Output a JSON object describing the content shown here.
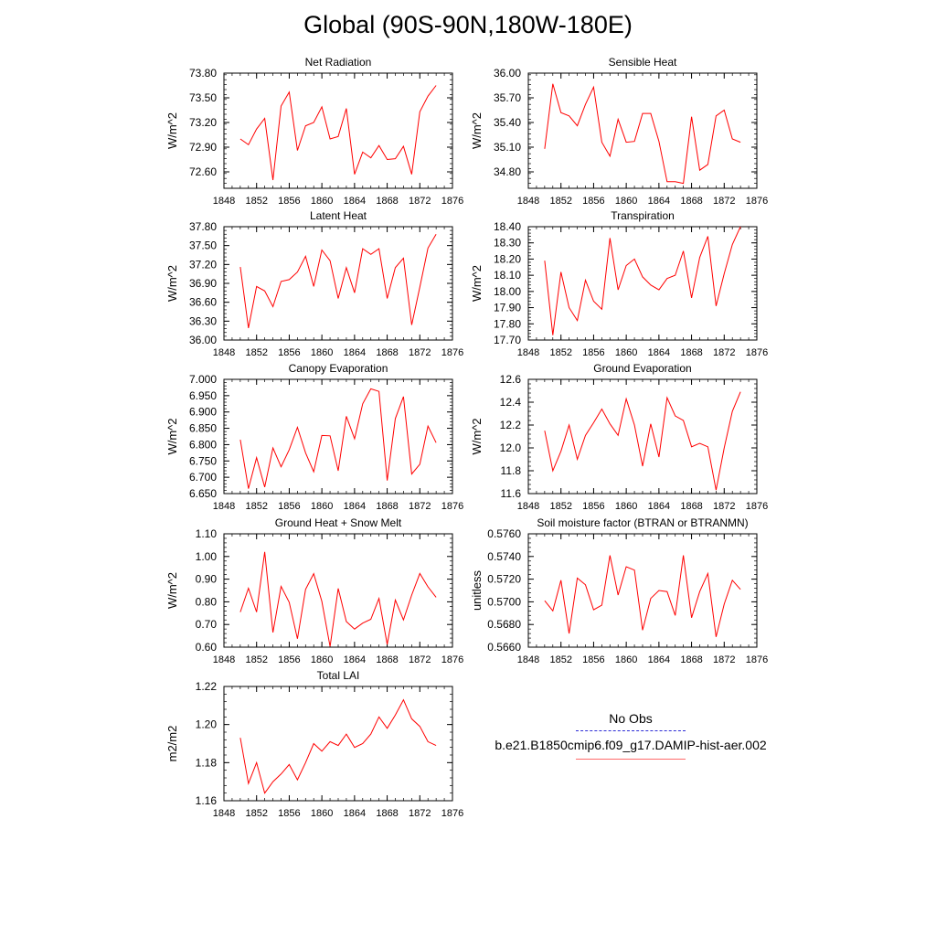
{
  "page": {
    "title": "Global (90S-90N,180W-180E)"
  },
  "legend": {
    "obs_label": "No Obs",
    "case_label": "b.e21.B1850cmip6.f09_g17.DAMIP-hist-aer.002",
    "obs_color": "#2b2bd6",
    "case_color": "#ff0000"
  },
  "chart_data": [
    {
      "type": "line",
      "title": "Net Radiation",
      "ylabel": "W/m^2",
      "xlim": [
        1848,
        1876
      ],
      "ylim": [
        72.4,
        73.8
      ],
      "x_ticks": [
        "1848",
        "1852",
        "1856",
        "1860",
        "1864",
        "1868",
        "1872",
        "1876"
      ],
      "y_ticks": [
        "72.60",
        "72.90",
        "73.20",
        "73.50",
        "73.80"
      ],
      "x": [
        1850,
        1851,
        1852,
        1853,
        1854,
        1855,
        1856,
        1857,
        1858,
        1859,
        1860,
        1861,
        1862,
        1863,
        1864,
        1865,
        1866,
        1867,
        1868,
        1869,
        1870,
        1871,
        1872,
        1873,
        1874
      ],
      "series": [
        {
          "values": [
            73.0,
            72.93,
            73.12,
            73.25,
            72.5,
            73.4,
            73.57,
            72.86,
            73.16,
            73.2,
            73.39,
            73.0,
            73.03,
            73.37,
            72.57,
            72.84,
            72.77,
            72.92,
            72.75,
            72.76,
            72.91,
            72.57,
            73.33,
            73.52,
            73.65
          ]
        }
      ]
    },
    {
      "type": "line",
      "title": "Sensible Heat",
      "ylabel": "W/m^2",
      "xlim": [
        1848,
        1876
      ],
      "ylim": [
        34.6,
        36.0
      ],
      "x_ticks": [
        "1848",
        "1852",
        "1856",
        "1860",
        "1864",
        "1868",
        "1872",
        "1876"
      ],
      "y_ticks": [
        "34.80",
        "35.10",
        "35.40",
        "35.70",
        "36.00"
      ],
      "x": [
        1850,
        1851,
        1852,
        1853,
        1854,
        1855,
        1856,
        1857,
        1858,
        1859,
        1860,
        1861,
        1862,
        1863,
        1864,
        1865,
        1866,
        1867,
        1868,
        1869,
        1870,
        1871,
        1872,
        1873,
        1874
      ],
      "series": [
        {
          "values": [
            35.08,
            35.87,
            35.52,
            35.48,
            35.36,
            35.62,
            35.83,
            35.16,
            34.99,
            35.44,
            35.16,
            35.17,
            35.51,
            35.51,
            35.17,
            34.68,
            34.68,
            34.66,
            35.47,
            34.82,
            34.89,
            35.48,
            35.55,
            35.2,
            35.16
          ]
        }
      ]
    },
    {
      "type": "line",
      "title": "Latent Heat",
      "ylabel": "W/m^2",
      "xlim": [
        1848,
        1876
      ],
      "ylim": [
        36.0,
        37.8
      ],
      "x_ticks": [
        "1848",
        "1852",
        "1856",
        "1860",
        "1864",
        "1868",
        "1872",
        "1876"
      ],
      "y_ticks": [
        "36.00",
        "36.30",
        "36.60",
        "36.90",
        "37.20",
        "37.50",
        "37.80"
      ],
      "x": [
        1850,
        1851,
        1852,
        1853,
        1854,
        1855,
        1856,
        1857,
        1858,
        1859,
        1860,
        1861,
        1862,
        1863,
        1864,
        1865,
        1866,
        1867,
        1868,
        1869,
        1870,
        1871,
        1872,
        1873,
        1874
      ],
      "series": [
        {
          "values": [
            37.16,
            36.19,
            36.85,
            36.78,
            36.53,
            36.93,
            36.96,
            37.08,
            37.33,
            36.85,
            37.43,
            37.26,
            36.66,
            37.15,
            36.75,
            37.45,
            37.36,
            37.45,
            36.66,
            37.15,
            37.3,
            36.24,
            36.84,
            37.46,
            37.68
          ]
        }
      ]
    },
    {
      "type": "line",
      "title": "Transpiration",
      "ylabel": "W/m^2",
      "xlim": [
        1848,
        1876
      ],
      "ylim": [
        17.7,
        18.4
      ],
      "x_ticks": [
        "1848",
        "1852",
        "1856",
        "1860",
        "1864",
        "1868",
        "1872",
        "1876"
      ],
      "y_ticks": [
        "17.70",
        "17.80",
        "17.90",
        "18.00",
        "18.10",
        "18.20",
        "18.30",
        "18.40"
      ],
      "x": [
        1850,
        1851,
        1852,
        1853,
        1854,
        1855,
        1856,
        1857,
        1858,
        1859,
        1860,
        1861,
        1862,
        1863,
        1864,
        1865,
        1866,
        1867,
        1868,
        1869,
        1870,
        1871,
        1872,
        1873,
        1874
      ],
      "series": [
        {
          "values": [
            18.19,
            17.73,
            18.12,
            17.9,
            17.82,
            18.07,
            17.94,
            17.89,
            18.33,
            18.01,
            18.16,
            18.2,
            18.09,
            18.04,
            18.01,
            18.08,
            18.1,
            18.25,
            17.96,
            18.21,
            18.34,
            17.91,
            18.11,
            18.29,
            18.4
          ]
        }
      ]
    },
    {
      "type": "line",
      "title": "Canopy Evaporation",
      "ylabel": "W/m^2",
      "xlim": [
        1848,
        1876
      ],
      "ylim": [
        6.65,
        7.0
      ],
      "x_ticks": [
        "1848",
        "1852",
        "1856",
        "1860",
        "1864",
        "1868",
        "1872",
        "1876"
      ],
      "y_ticks": [
        "6.650",
        "6.700",
        "6.750",
        "6.800",
        "6.850",
        "6.900",
        "6.950",
        "7.000"
      ],
      "x": [
        1850,
        1851,
        1852,
        1853,
        1854,
        1855,
        1856,
        1857,
        1858,
        1859,
        1860,
        1861,
        1862,
        1863,
        1864,
        1865,
        1866,
        1867,
        1868,
        1869,
        1870,
        1871,
        1872,
        1873,
        1874
      ],
      "series": [
        {
          "values": [
            6.815,
            6.665,
            6.76,
            6.67,
            6.79,
            6.732,
            6.784,
            6.853,
            6.775,
            6.717,
            6.828,
            6.827,
            6.72,
            6.887,
            6.818,
            6.925,
            6.971,
            6.963,
            6.69,
            6.88,
            6.947,
            6.71,
            6.74,
            6.857,
            6.806
          ]
        }
      ]
    },
    {
      "type": "line",
      "title": "Ground Evaporation",
      "ylabel": "W/m^2",
      "xlim": [
        1848,
        1876
      ],
      "ylim": [
        11.6,
        12.6
      ],
      "x_ticks": [
        "1848",
        "1852",
        "1856",
        "1860",
        "1864",
        "1868",
        "1872",
        "1876"
      ],
      "y_ticks": [
        "11.6",
        "11.8",
        "12.0",
        "12.2",
        "12.4",
        "12.6"
      ],
      "x": [
        1850,
        1851,
        1852,
        1853,
        1854,
        1855,
        1856,
        1857,
        1858,
        1859,
        1860,
        1861,
        1862,
        1863,
        1864,
        1865,
        1866,
        1867,
        1868,
        1869,
        1870,
        1871,
        1872,
        1873,
        1874
      ],
      "series": [
        {
          "values": [
            12.15,
            11.8,
            11.97,
            12.2,
            11.9,
            12.11,
            12.22,
            12.34,
            12.21,
            12.11,
            12.43,
            12.2,
            11.84,
            12.21,
            11.92,
            12.44,
            12.28,
            12.24,
            12.01,
            12.04,
            12.01,
            11.63,
            12.0,
            12.32,
            12.49
          ]
        }
      ]
    },
    {
      "type": "line",
      "title": "Ground Heat + Snow Melt",
      "ylabel": "W/m^2",
      "xlim": [
        1848,
        1876
      ],
      "ylim": [
        0.6,
        1.1
      ],
      "x_ticks": [
        "1848",
        "1852",
        "1856",
        "1860",
        "1864",
        "1868",
        "1872",
        "1876"
      ],
      "y_ticks": [
        "0.60",
        "0.70",
        "0.80",
        "0.90",
        "1.00",
        "1.10"
      ],
      "x": [
        1850,
        1851,
        1852,
        1853,
        1854,
        1855,
        1856,
        1857,
        1858,
        1859,
        1860,
        1861,
        1862,
        1863,
        1864,
        1865,
        1866,
        1867,
        1868,
        1869,
        1870,
        1871,
        1872,
        1873,
        1874
      ],
      "series": [
        {
          "values": [
            0.755,
            0.86,
            0.755,
            1.02,
            0.665,
            0.868,
            0.798,
            0.637,
            0.855,
            0.924,
            0.802,
            0.603,
            0.859,
            0.713,
            0.68,
            0.706,
            0.723,
            0.815,
            0.612,
            0.808,
            0.72,
            0.83,
            0.925,
            0.866,
            0.82
          ]
        }
      ]
    },
    {
      "type": "line",
      "title": "Soil moisture factor (BTRAN or BTRANMN)",
      "ylabel": "unitless",
      "xlim": [
        1848,
        1876
      ],
      "ylim": [
        0.566,
        0.576
      ],
      "x_ticks": [
        "1848",
        "1852",
        "1856",
        "1860",
        "1864",
        "1868",
        "1872",
        "1876"
      ],
      "y_ticks": [
        "0.5660",
        "0.5680",
        "0.5700",
        "0.5720",
        "0.5740",
        "0.5760"
      ],
      "x": [
        1850,
        1851,
        1852,
        1853,
        1854,
        1855,
        1856,
        1857,
        1858,
        1859,
        1860,
        1861,
        1862,
        1863,
        1864,
        1865,
        1866,
        1867,
        1868,
        1869,
        1870,
        1871,
        1872,
        1873,
        1874
      ],
      "series": [
        {
          "values": [
            0.5701,
            0.5692,
            0.5719,
            0.5672,
            0.5721,
            0.5715,
            0.5693,
            0.5697,
            0.5741,
            0.5706,
            0.5731,
            0.5728,
            0.5675,
            0.5703,
            0.571,
            0.5709,
            0.5688,
            0.5741,
            0.5686,
            0.5709,
            0.5725,
            0.5669,
            0.5698,
            0.5719,
            0.5711
          ]
        }
      ]
    },
    {
      "type": "line",
      "title": "Total LAI",
      "ylabel": "m2/m2",
      "xlim": [
        1848,
        1876
      ],
      "ylim": [
        1.16,
        1.22
      ],
      "x_ticks": [
        "1848",
        "1852",
        "1856",
        "1860",
        "1864",
        "1868",
        "1872",
        "1876"
      ],
      "y_ticks": [
        "1.16",
        "1.18",
        "1.20",
        "1.22"
      ],
      "x": [
        1850,
        1851,
        1852,
        1853,
        1854,
        1855,
        1856,
        1857,
        1858,
        1859,
        1860,
        1861,
        1862,
        1863,
        1864,
        1865,
        1866,
        1867,
        1868,
        1869,
        1870,
        1871,
        1872,
        1873,
        1874
      ],
      "series": [
        {
          "values": [
            1.193,
            1.169,
            1.18,
            1.164,
            1.17,
            1.174,
            1.179,
            1.171,
            1.18,
            1.19,
            1.186,
            1.191,
            1.189,
            1.195,
            1.188,
            1.19,
            1.195,
            1.204,
            1.198,
            1.205,
            1.213,
            1.203,
            1.199,
            1.191,
            1.189
          ]
        }
      ]
    }
  ]
}
